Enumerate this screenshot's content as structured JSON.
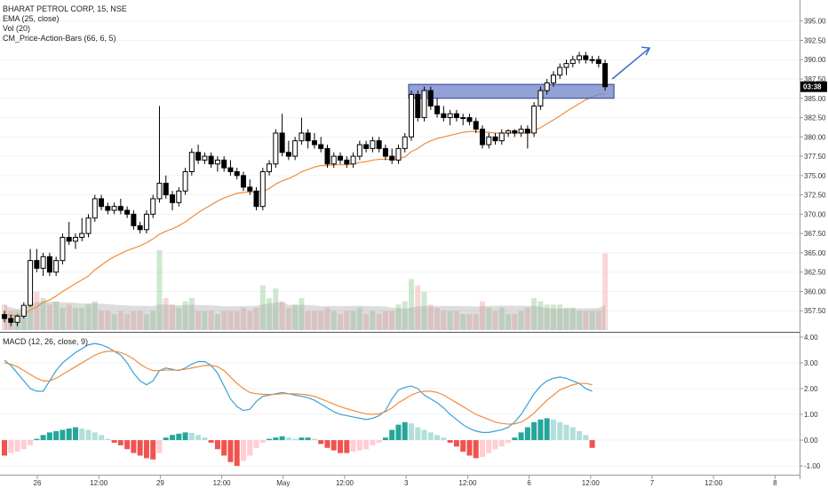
{
  "legend": {
    "title": "BHARAT PETROL CORP, 15, NSE",
    "ema": "EMA (25, close)",
    "vol": "Vol (20)",
    "pab": "CM_Price-Action-Bars (66, 6, 5)",
    "macd": "MACD (12, 26, close, 9)"
  },
  "price_badge": "03:38",
  "x_ticks": [
    "26",
    "12:00",
    "29",
    "12:00",
    "May",
    "12:00",
    "3",
    "12:00",
    "6",
    "12:00",
    "7",
    "12:00",
    "8"
  ],
  "colors": {
    "candle_up": "#ffffff",
    "candle_down": "#000000",
    "candle_outline": "#000000",
    "ema": "#f08c3c",
    "macd_line": "#3aa0d8",
    "signal_line": "#f08c3c",
    "hist_pos_strong": "#26a69a",
    "hist_pos_weak": "#b2dfdb",
    "hist_neg_strong": "#ef5350",
    "hist_neg_weak": "#ffcdd2",
    "zone": "#6f82c8",
    "arrow": "#3a6cc8"
  },
  "chart_data": [
    {
      "type": "candlestick",
      "title": "BHARAT PETROL CORP, 15, NSE",
      "ylim": [
        355.0,
        396.0
      ],
      "y_ticks": [
        "357.50",
        "360.00",
        "362.50",
        "365.00",
        "367.50",
        "370.00",
        "372.50",
        "375.00",
        "377.50",
        "380.00",
        "382.50",
        "385.00",
        "387.50",
        "390.00",
        "392.50",
        "395.00"
      ],
      "current_price_label": "03:38",
      "ohlc": [
        [
          357,
          357.5,
          356,
          356.5
        ],
        [
          356.5,
          357,
          355.5,
          356
        ],
        [
          356,
          357,
          355.5,
          356.8
        ],
        [
          356.8,
          358.6,
          356.5,
          358.2
        ],
        [
          358.2,
          365.5,
          358,
          364
        ],
        [
          364,
          365.5,
          362.5,
          363
        ],
        [
          363,
          365,
          362,
          364.5
        ],
        [
          364.5,
          365,
          362,
          362.5
        ],
        [
          362.5,
          364.5,
          362,
          364
        ],
        [
          364,
          367.5,
          363.5,
          367
        ],
        [
          367,
          369,
          366,
          366.5
        ],
        [
          366.5,
          367.5,
          365.5,
          367
        ],
        [
          367,
          369.5,
          366.5,
          367.5
        ],
        [
          367.5,
          370,
          367,
          369.5
        ],
        [
          369.5,
          372.5,
          369,
          372
        ],
        [
          372,
          372.5,
          370.5,
          371
        ],
        [
          371,
          371.5,
          370,
          370.5
        ],
        [
          370.5,
          371.5,
          370,
          371
        ],
        [
          371,
          372,
          370,
          370.5
        ],
        [
          370.5,
          371,
          369.5,
          370
        ],
        [
          370,
          370.5,
          368,
          368.5
        ],
        [
          368.5,
          369,
          367.5,
          368
        ],
        [
          368,
          370.5,
          367.5,
          370
        ],
        [
          370,
          372.5,
          369.5,
          372
        ],
        [
          372,
          384,
          371.5,
          374
        ],
        [
          374,
          375,
          372,
          372.5
        ],
        [
          372.5,
          373,
          370.5,
          371.5
        ],
        [
          371.5,
          373.5,
          371,
          373
        ],
        [
          373,
          376,
          372.5,
          375.5
        ],
        [
          375.5,
          378.5,
          375,
          378
        ],
        [
          378,
          379,
          376.5,
          377
        ],
        [
          377,
          378,
          376.5,
          377.5
        ],
        [
          377.5,
          378,
          376,
          376.5
        ],
        [
          376.5,
          377.5,
          375.5,
          377
        ],
        [
          377,
          377.5,
          375.5,
          376
        ],
        [
          376,
          377,
          375,
          375.5
        ],
        [
          375.5,
          376,
          374.5,
          375
        ],
        [
          375,
          375.5,
          373,
          373.5
        ],
        [
          373.5,
          374.5,
          372.5,
          373
        ],
        [
          373,
          373.5,
          370.5,
          371
        ],
        [
          371,
          376,
          370.5,
          375.5
        ],
        [
          375.5,
          377,
          375,
          376.5
        ],
        [
          376.5,
          381,
          376,
          380.5
        ],
        [
          380.5,
          383,
          377.5,
          378
        ],
        [
          378,
          379.5,
          377,
          377.5
        ],
        [
          377.5,
          380,
          377,
          379.5
        ],
        [
          379.5,
          382.5,
          379,
          380.5
        ],
        [
          380.5,
          381,
          378.5,
          379.5
        ],
        [
          379.5,
          380.5,
          378.5,
          379
        ],
        [
          379,
          380,
          378,
          378.5
        ],
        [
          378.5,
          379,
          376,
          376.5
        ],
        [
          376.5,
          378,
          376,
          377.5
        ],
        [
          377.5,
          378,
          376.5,
          377
        ],
        [
          377,
          377.5,
          376,
          376.5
        ],
        [
          376.5,
          378,
          376,
          377.5
        ],
        [
          377.5,
          379.5,
          377,
          379
        ],
        [
          379,
          379.5,
          378,
          378.5
        ],
        [
          378.5,
          380,
          378,
          379.5
        ],
        [
          379.5,
          380,
          378,
          378.5
        ],
        [
          378.5,
          379,
          377,
          377.5
        ],
        [
          377.5,
          378.5,
          376.5,
          377
        ],
        [
          377,
          379,
          376.5,
          378.5
        ],
        [
          378.5,
          380.5,
          378,
          380
        ],
        [
          380,
          386,
          379.5,
          385.5
        ],
        [
          385.5,
          386,
          382,
          382.5
        ],
        [
          382.5,
          386.5,
          382,
          386
        ],
        [
          386,
          386.5,
          383.5,
          384
        ],
        [
          384,
          385,
          382.5,
          383
        ],
        [
          383,
          384,
          382,
          382.5
        ],
        [
          382.5,
          383.5,
          381.5,
          383
        ],
        [
          383,
          383.5,
          382,
          382.5
        ],
        [
          382.5,
          383,
          381.5,
          382.5
        ],
        [
          382.5,
          383,
          381.5,
          382
        ],
        [
          382,
          382.5,
          380.5,
          381
        ],
        [
          381,
          381.5,
          378.5,
          379
        ],
        [
          379,
          380.5,
          378.5,
          380
        ],
        [
          380,
          380.5,
          379,
          379.5
        ],
        [
          379.5,
          381,
          379,
          380.5
        ],
        [
          380.5,
          381,
          380,
          380.8
        ],
        [
          380.8,
          381,
          380,
          380.5
        ],
        [
          380.5,
          381.5,
          380,
          381
        ],
        [
          381,
          381.5,
          378.5,
          380.5
        ],
        [
          380.5,
          384.5,
          380,
          384
        ],
        [
          384,
          386.5,
          383.5,
          386
        ],
        [
          386,
          387.5,
          385.5,
          387
        ],
        [
          387,
          388.5,
          386.5,
          388
        ],
        [
          388,
          389.5,
          387.5,
          389
        ],
        [
          389,
          390,
          388,
          389.5
        ],
        [
          389.5,
          390.5,
          389,
          390
        ],
        [
          390,
          391,
          389.5,
          390.5
        ],
        [
          390.5,
          391,
          389.5,
          390
        ],
        [
          390,
          390.5,
          389.5,
          390
        ],
        [
          390,
          390.5,
          389,
          389.5
        ],
        [
          389.5,
          390,
          386,
          386.5
        ]
      ],
      "ema_25": [
        357.0,
        356.9,
        356.9,
        357.0,
        357.6,
        358.0,
        358.6,
        358.9,
        359.4,
        360.0,
        360.5,
        361.0,
        361.5,
        362.0,
        362.8,
        363.4,
        364.0,
        364.5,
        364.9,
        365.3,
        365.6,
        365.9,
        366.3,
        366.8,
        367.4,
        367.8,
        368.1,
        368.5,
        369.0,
        369.6,
        370.2,
        370.7,
        371.2,
        371.7,
        372.1,
        372.4,
        372.7,
        372.8,
        372.9,
        372.8,
        373.0,
        373.3,
        373.9,
        374.3,
        374.6,
        375.0,
        375.5,
        375.8,
        376.1,
        376.3,
        376.3,
        376.4,
        376.4,
        376.4,
        376.5,
        376.7,
        376.8,
        377.0,
        377.1,
        377.1,
        377.1,
        377.2,
        377.4,
        378.1,
        378.5,
        379.1,
        379.5,
        379.8,
        380.0,
        380.2,
        380.4,
        380.6,
        380.7,
        380.7,
        380.6,
        380.6,
        380.5,
        380.5,
        380.5,
        380.5,
        380.5,
        380.5,
        380.8,
        381.2,
        381.7,
        382.2,
        382.7,
        383.3,
        383.8,
        384.3,
        384.8,
        385.2,
        385.5,
        385.6
      ],
      "volume": [
        8,
        6,
        6,
        7,
        14,
        12,
        10,
        8,
        9,
        7,
        8,
        7,
        7,
        8,
        9,
        6,
        6,
        5,
        6,
        5,
        6,
        6,
        5,
        6,
        25,
        10,
        8,
        7,
        9,
        10,
        6,
        6,
        6,
        5,
        6,
        6,
        6,
        7,
        6,
        7,
        14,
        10,
        13,
        9,
        7,
        8,
        10,
        6,
        6,
        6,
        7,
        6,
        5,
        6,
        6,
        7,
        5,
        6,
        5,
        6,
        6,
        8,
        9,
        16,
        14,
        12,
        8,
        7,
        6,
        6,
        6,
        5,
        5,
        5,
        9,
        7,
        6,
        7,
        5,
        5,
        6,
        7,
        10,
        9,
        8,
        8,
        8,
        7,
        7,
        6,
        6,
        6,
        6,
        24
      ],
      "zone": {
        "from": 385.0,
        "to": 386.8
      },
      "arrow": {
        "from_price": 387.5,
        "to_price": 391.5
      }
    },
    {
      "type": "histogram+line",
      "title": "MACD (12, 26, close, 9)",
      "ylim": [
        -1.1,
        4.1
      ],
      "y_ticks": [
        "-1.00",
        "0.00",
        "1.00",
        "2.00",
        "3.00",
        "4.00"
      ],
      "macd": [
        3.1,
        2.9,
        2.6,
        2.3,
        2.0,
        1.9,
        1.9,
        2.3,
        2.7,
        3.0,
        3.2,
        3.4,
        3.55,
        3.7,
        3.75,
        3.7,
        3.6,
        3.45,
        3.3,
        3.0,
        2.6,
        2.3,
        2.15,
        2.3,
        2.7,
        2.8,
        2.75,
        2.7,
        2.8,
        2.95,
        3.05,
        3.05,
        2.9,
        2.6,
        2.1,
        1.6,
        1.3,
        1.15,
        1.2,
        1.5,
        1.7,
        1.75,
        1.8,
        1.85,
        1.8,
        1.75,
        1.7,
        1.65,
        1.55,
        1.4,
        1.25,
        1.1,
        1.0,
        0.95,
        0.9,
        0.85,
        0.8,
        0.85,
        0.95,
        1.15,
        1.6,
        1.95,
        2.05,
        2.1,
        2.0,
        1.75,
        1.6,
        1.45,
        1.25,
        1.0,
        0.8,
        0.6,
        0.45,
        0.35,
        0.3,
        0.3,
        0.35,
        0.4,
        0.5,
        0.7,
        1.0,
        1.4,
        1.8,
        2.1,
        2.3,
        2.4,
        2.45,
        2.4,
        2.3,
        2.2,
        2.0,
        1.9
      ],
      "signal": [
        3.0,
        2.95,
        2.85,
        2.7,
        2.55,
        2.4,
        2.3,
        2.3,
        2.4,
        2.55,
        2.7,
        2.85,
        3.0,
        3.15,
        3.3,
        3.4,
        3.45,
        3.45,
        3.4,
        3.3,
        3.15,
        2.95,
        2.8,
        2.7,
        2.7,
        2.72,
        2.72,
        2.72,
        2.75,
        2.8,
        2.85,
        2.9,
        2.9,
        2.85,
        2.7,
        2.45,
        2.2,
        2.0,
        1.85,
        1.8,
        1.78,
        1.77,
        1.78,
        1.8,
        1.8,
        1.8,
        1.78,
        1.75,
        1.7,
        1.6,
        1.5,
        1.4,
        1.3,
        1.22,
        1.15,
        1.08,
        1.02,
        1.0,
        1.02,
        1.1,
        1.25,
        1.45,
        1.6,
        1.75,
        1.85,
        1.9,
        1.9,
        1.85,
        1.75,
        1.6,
        1.45,
        1.3,
        1.15,
        1.0,
        0.9,
        0.8,
        0.7,
        0.65,
        0.62,
        0.63,
        0.7,
        0.85,
        1.05,
        1.3,
        1.55,
        1.75,
        1.95,
        2.05,
        2.15,
        2.2,
        2.2,
        2.15
      ],
      "histogram": [
        -0.6,
        -0.5,
        -0.45,
        -0.35,
        -0.2,
        0.05,
        0.2,
        0.3,
        0.35,
        0.4,
        0.45,
        0.5,
        0.45,
        0.4,
        0.3,
        0.2,
        0.05,
        -0.1,
        -0.2,
        -0.35,
        -0.5,
        -0.6,
        -0.7,
        -0.75,
        -0.5,
        0.1,
        0.2,
        0.25,
        0.3,
        0.28,
        0.2,
        0.1,
        -0.1,
        -0.35,
        -0.6,
        -0.85,
        -1.0,
        -0.8,
        -0.6,
        -0.3,
        -0.1,
        0.05,
        0.1,
        0.15,
        0.1,
        0.05,
        0.1,
        0.1,
        0.05,
        -0.15,
        -0.3,
        -0.4,
        -0.5,
        -0.5,
        -0.45,
        -0.4,
        -0.35,
        -0.2,
        -0.1,
        0.1,
        0.4,
        0.6,
        0.7,
        0.65,
        0.5,
        0.4,
        0.3,
        0.2,
        0.1,
        -0.1,
        -0.25,
        -0.45,
        -0.6,
        -0.7,
        -0.65,
        -0.5,
        -0.35,
        -0.25,
        -0.1,
        0.1,
        0.3,
        0.5,
        0.7,
        0.8,
        0.85,
        0.8,
        0.7,
        0.6,
        0.5,
        0.35,
        0.2,
        -0.3
      ]
    }
  ]
}
